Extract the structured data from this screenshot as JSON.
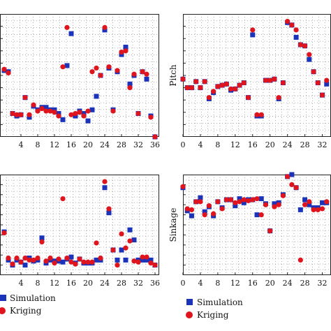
{
  "colors": {
    "simulation": "#1a33b8",
    "kriging": "#e0141c",
    "grid": "#9a9a9a",
    "frame": "#222222"
  },
  "chart_data": [
    {
      "type": "scatter",
      "panel": "top-left",
      "ylabel": "",
      "xlim": [
        -1,
        37
      ],
      "ylim": [
        0,
        10
      ],
      "xticks": [
        4,
        8,
        12,
        16,
        20,
        24,
        28,
        32,
        36
      ],
      "grid": true,
      "series": [
        {
          "name": "Simulation",
          "marker": "square",
          "x": [
            0,
            1,
            2,
            3,
            4,
            5,
            6,
            7,
            8,
            9,
            10,
            11,
            12,
            13,
            14,
            15,
            16,
            17,
            18,
            19,
            20,
            21,
            22,
            23,
            24,
            25,
            26,
            27,
            28,
            29,
            30,
            31,
            32,
            33,
            34,
            35,
            36
          ],
          "y": [
            5.4,
            5.3,
            1.9,
            1.7,
            1.8,
            3.2,
            1.6,
            2.5,
            2.2,
            2.4,
            2.4,
            2.2,
            2.2,
            1.9,
            1.4,
            5.8,
            8.4,
            1.7,
            2.1,
            1.9,
            1.3,
            2.2,
            3.3,
            5.0,
            8.7,
            5.6,
            2.2,
            5.3,
            6.7,
            7.3,
            4.3,
            5.0,
            1.9,
            5.3,
            4.7,
            1.7,
            0
          ]
        },
        {
          "name": "Kriging",
          "marker": "circle",
          "x": [
            0,
            1,
            2,
            3,
            4,
            5,
            6,
            7,
            8,
            9,
            10,
            11,
            12,
            13,
            14,
            15,
            16,
            17,
            18,
            19,
            20,
            21,
            22,
            23,
            24,
            25,
            26,
            27,
            28,
            29,
            30,
            31,
            32,
            33,
            34,
            35,
            36
          ],
          "y": [
            5.5,
            5.2,
            1.9,
            1.8,
            1.8,
            3.2,
            1.8,
            2.6,
            2.1,
            2.3,
            2.1,
            2.1,
            2.0,
            1.7,
            5.7,
            8.9,
            1.8,
            1.9,
            2.0,
            1.7,
            2.1,
            5.3,
            5.6,
            5.0,
            8.9,
            5.7,
            2.1,
            5.4,
            6.9,
            7.0,
            4.0,
            5.1,
            1.9,
            5.3,
            5.1,
            1.6,
            0
          ]
        }
      ]
    },
    {
      "type": "scatter",
      "panel": "top-right",
      "ylabel": "Pitch",
      "xlim": [
        0,
        34
      ],
      "ylim": [
        0,
        10
      ],
      "xticks": [
        0,
        4,
        8,
        12,
        16,
        20,
        24,
        28,
        32
      ],
      "grid": true,
      "series": [
        {
          "name": "Simulation",
          "marker": "square",
          "x": [
            0,
            1,
            2,
            3,
            4,
            5,
            6,
            7,
            8,
            9,
            10,
            11,
            12,
            13,
            14,
            15,
            16,
            17,
            18,
            19,
            20,
            21,
            22,
            23,
            24,
            25,
            26,
            27,
            28,
            29,
            30,
            31,
            32,
            33
          ],
          "y": [
            4.7,
            4.0,
            4.0,
            4.5,
            4.0,
            4.5,
            3.1,
            3.6,
            4.1,
            4.2,
            4.3,
            3.8,
            3.9,
            4.2,
            4.4,
            3.2,
            8.3,
            1.7,
            1.7,
            4.6,
            4.6,
            4.7,
            3.1,
            4.4,
            9.3,
            9.1,
            8.1,
            7.5,
            7.4,
            6.3,
            5.3,
            4.4,
            3.4,
            4.3
          ]
        },
        {
          "name": "Kriging",
          "marker": "circle",
          "x": [
            0,
            1,
            2,
            3,
            4,
            5,
            6,
            7,
            8,
            9,
            10,
            11,
            12,
            13,
            14,
            15,
            16,
            17,
            18,
            19,
            20,
            21,
            22,
            23,
            24,
            25,
            26,
            27,
            28,
            29,
            30,
            31,
            32,
            33
          ],
          "y": [
            4.7,
            4.0,
            4.0,
            4.5,
            4.0,
            4.5,
            3.2,
            3.7,
            4.1,
            4.2,
            4.3,
            3.9,
            3.9,
            4.2,
            4.4,
            3.2,
            8.7,
            1.8,
            1.8,
            4.6,
            4.6,
            4.7,
            3.2,
            4.4,
            9.4,
            9.1,
            8.7,
            7.5,
            7.4,
            6.7,
            5.3,
            4.4,
            3.4,
            4.6
          ]
        }
      ]
    },
    {
      "type": "scatter",
      "panel": "bottom-left",
      "ylabel": "",
      "xlim": [
        -1,
        37
      ],
      "ylim": [
        0,
        10
      ],
      "xticks": [
        4,
        8,
        12,
        16,
        20,
        24,
        28,
        32,
        36
      ],
      "grid": true,
      "series": [
        {
          "name": "Simulation",
          "marker": "square",
          "x": [
            0,
            1,
            2,
            3,
            4,
            5,
            6,
            7,
            8,
            9,
            10,
            11,
            12,
            13,
            14,
            15,
            16,
            17,
            18,
            19,
            20,
            21,
            22,
            23,
            24,
            25,
            26,
            27,
            28,
            29,
            30,
            31,
            32,
            33,
            34,
            35,
            36
          ],
          "y": [
            4.3,
            1.5,
            1.0,
            1.5,
            1.3,
            1.0,
            1.7,
            1.4,
            1.5,
            3.7,
            1.2,
            1.5,
            1.4,
            1.4,
            1.3,
            1.6,
            1.8,
            1.2,
            1.6,
            1.2,
            1.2,
            1.2,
            1.5,
            1.5,
            8.7,
            6.2,
            2.5,
            1.5,
            2.5,
            1.5,
            4.5,
            3.5,
            1.5,
            1.5,
            1.5,
            1.5,
            1.0
          ]
        },
        {
          "name": "Kriging",
          "marker": "circle",
          "x": [
            0,
            1,
            2,
            3,
            4,
            5,
            6,
            7,
            8,
            9,
            10,
            11,
            12,
            13,
            14,
            15,
            16,
            17,
            18,
            19,
            20,
            21,
            22,
            23,
            24,
            25,
            26,
            27,
            28,
            29,
            30,
            31,
            32,
            33,
            34,
            35,
            36
          ],
          "y": [
            4.2,
            1.7,
            1.1,
            1.7,
            1.3,
            1.7,
            1.5,
            1.5,
            1.7,
            3.3,
            1.4,
            1.7,
            1.2,
            1.6,
            7.6,
            1.7,
            1.3,
            1.1,
            1.6,
            1.3,
            1.3,
            1.3,
            3.2,
            1.7,
            9.3,
            6.6,
            2.5,
            1.0,
            4.1,
            2.7,
            3.4,
            1.4,
            1.3,
            1.8,
            1.8,
            1.2,
            1.0
          ]
        }
      ]
    },
    {
      "type": "scatter",
      "panel": "bottom-right",
      "ylabel": "Sinkage",
      "xlim": [
        0,
        34
      ],
      "ylim": [
        0,
        10
      ],
      "xticks": [
        0,
        4,
        8,
        12,
        16,
        20,
        24,
        28,
        32
      ],
      "grid": true,
      "series": [
        {
          "name": "Simulation",
          "marker": "square",
          "x": [
            0,
            1,
            2,
            3,
            4,
            5,
            6,
            7,
            8,
            9,
            10,
            11,
            12,
            13,
            14,
            15,
            16,
            17,
            18,
            19,
            20,
            21,
            22,
            23,
            24,
            25,
            26,
            27,
            28,
            29,
            30,
            31,
            32,
            33
          ],
          "y": [
            8.7,
            6.4,
            5.9,
            7.3,
            7.7,
            6.3,
            6.8,
            5.9,
            7.3,
            6.7,
            7.5,
            7.5,
            6.9,
            7.6,
            7.2,
            7.5,
            7.5,
            6.0,
            7.6,
            7.1,
            4.4,
            7.1,
            7.2,
            8.0,
            9.8,
            10.0,
            8.7,
            6.5,
            7.5,
            7.0,
            6.7,
            6.7,
            7.2,
            7.2
          ]
        },
        {
          "name": "Kriging",
          "marker": "circle",
          "x": [
            0,
            1,
            2,
            3,
            4,
            5,
            6,
            7,
            8,
            9,
            10,
            11,
            12,
            13,
            14,
            15,
            16,
            17,
            18,
            19,
            20,
            21,
            22,
            23,
            24,
            25,
            26,
            27,
            28,
            29,
            30,
            31,
            32,
            33
          ],
          "y": [
            8.8,
            6.6,
            6.5,
            7.3,
            7.3,
            6.0,
            6.9,
            6.1,
            7.3,
            6.6,
            7.5,
            7.5,
            7.2,
            7.3,
            7.5,
            7.4,
            7.5,
            7.6,
            6.0,
            7.0,
            4.4,
            6.8,
            7.0,
            7.9,
            9.8,
            9.0,
            8.7,
            1.5,
            7.0,
            7.3,
            6.5,
            6.5,
            6.6,
            7.3
          ]
        }
      ]
    }
  ],
  "legends": {
    "left": {
      "simulation": "Simulation",
      "kriging": "Kriging"
    },
    "right": {
      "simulation": "Simulation",
      "kriging": "Kriging"
    }
  }
}
